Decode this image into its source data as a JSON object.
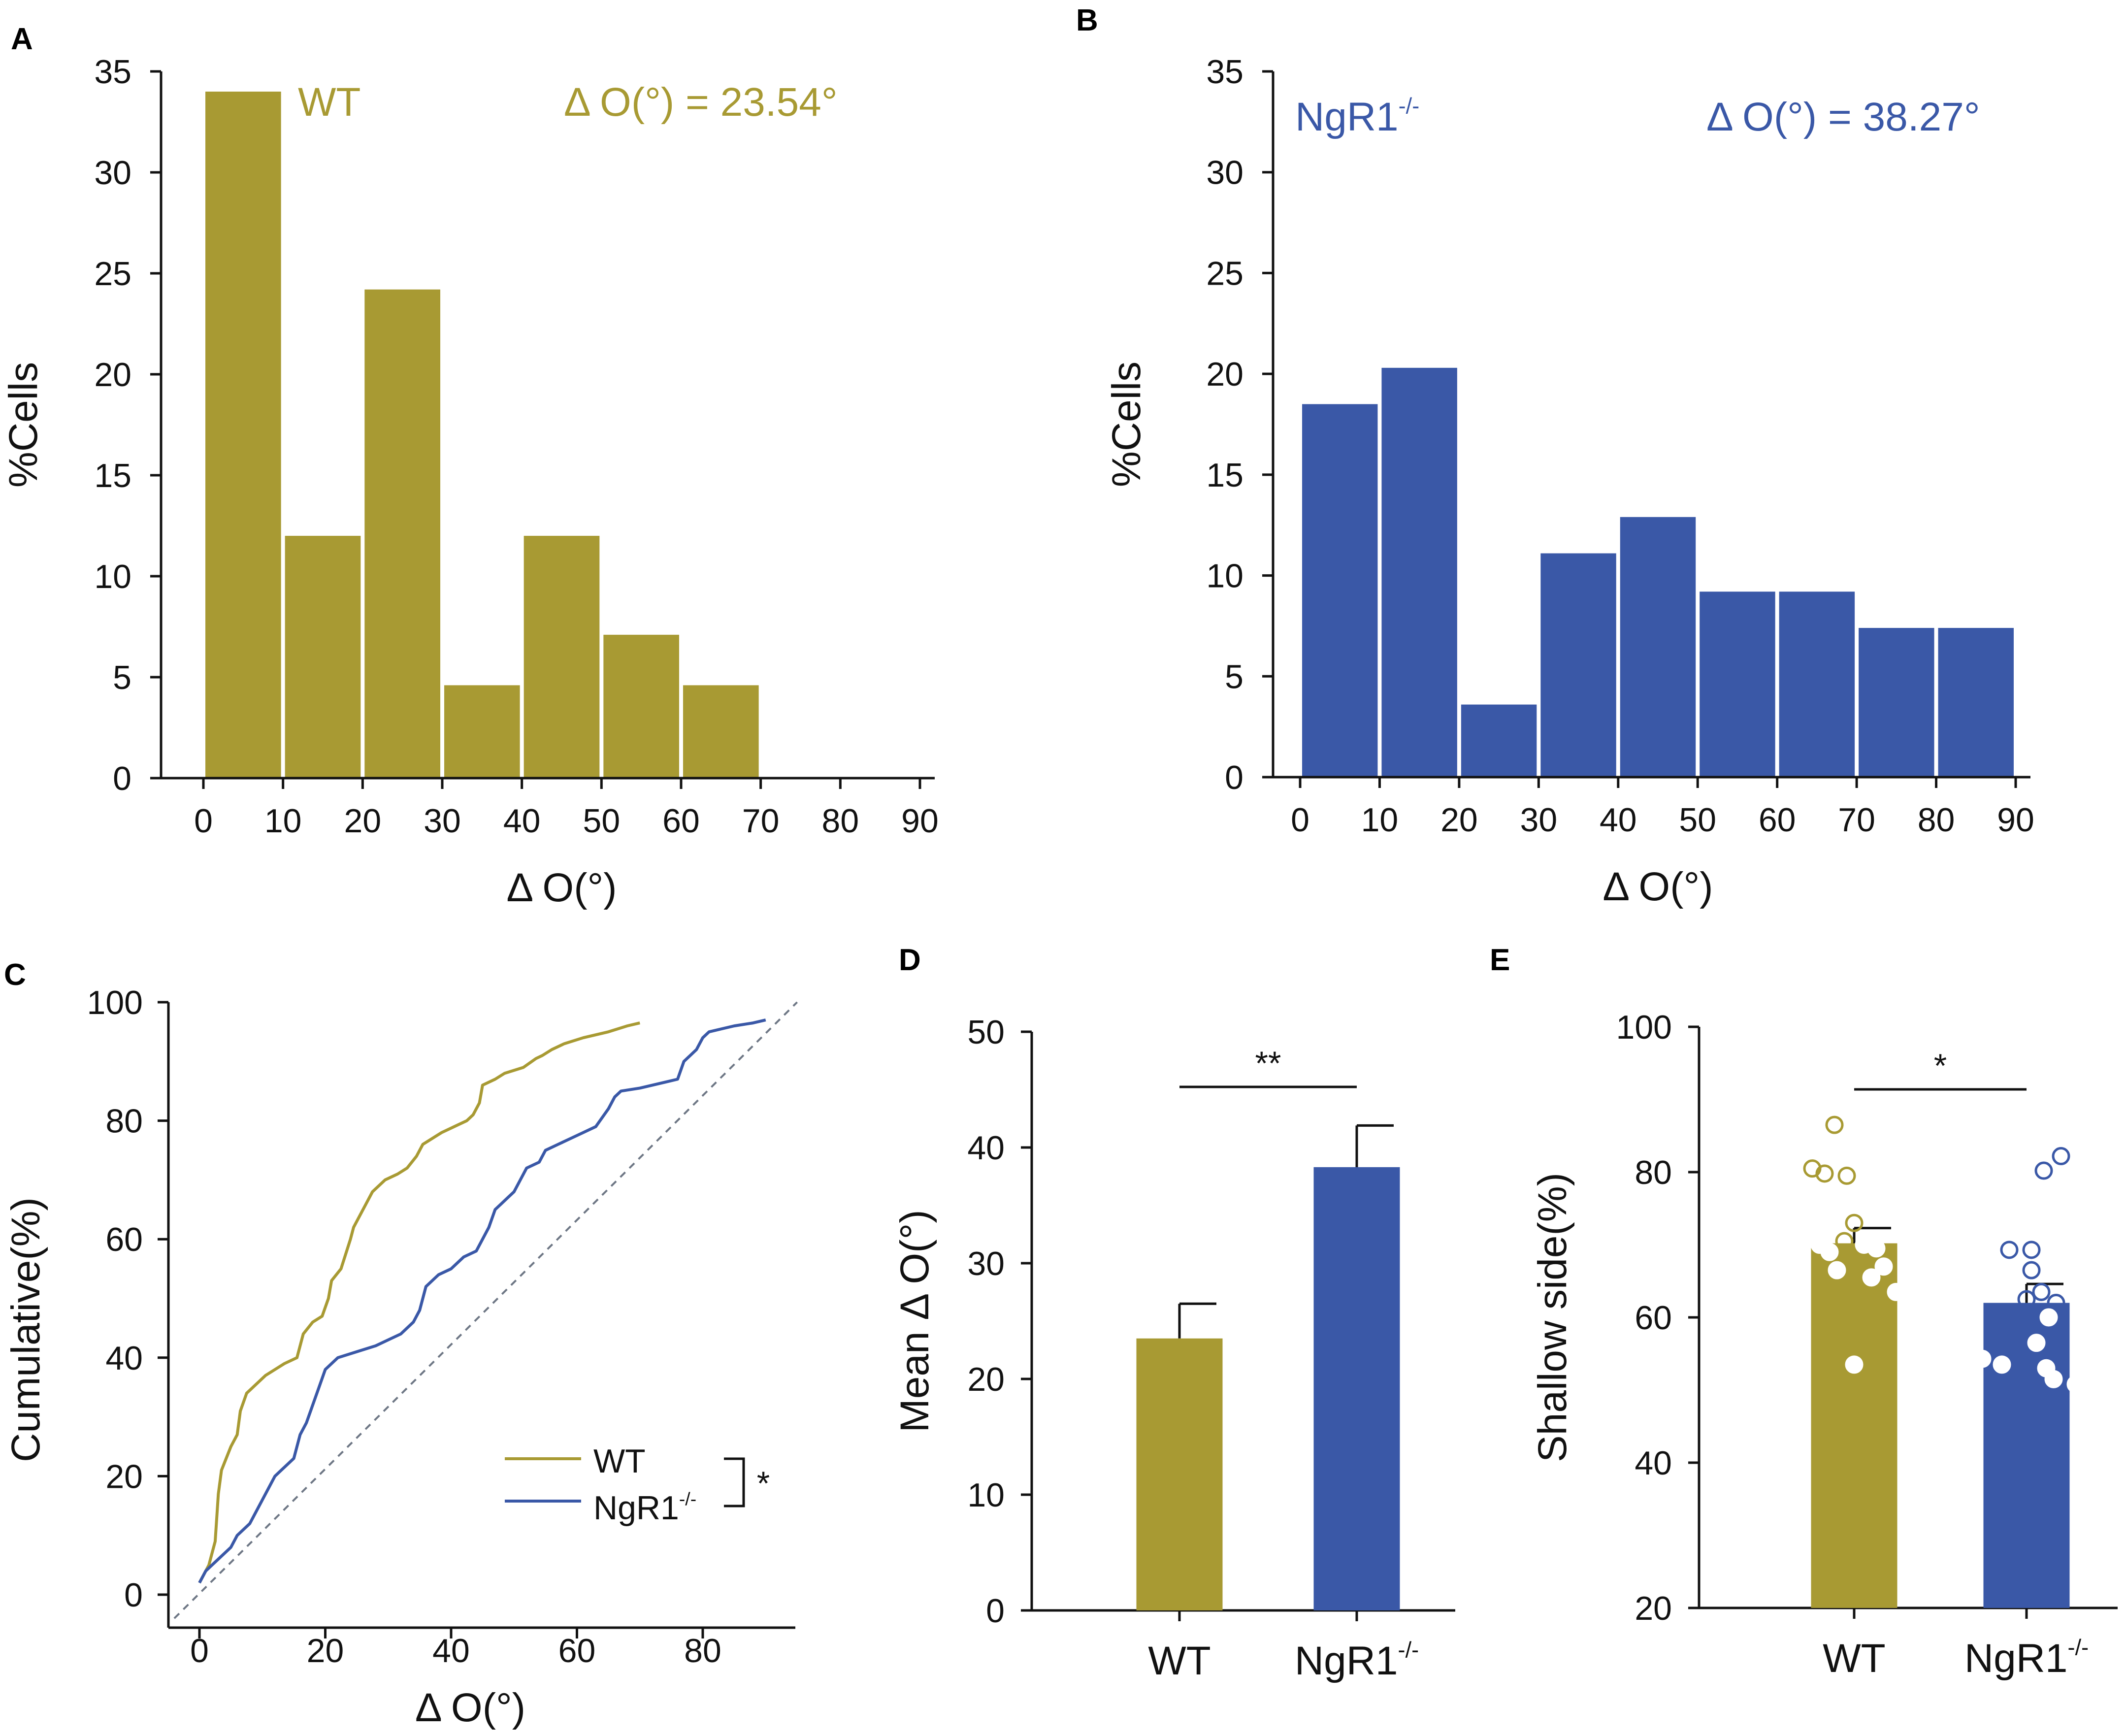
{
  "colors": {
    "wt": "#A89A33",
    "ngr1": "#3A58A7",
    "axis": "#111111",
    "diag": "#6E7785"
  },
  "sup": "-/-",
  "chart_data": [
    {
      "panel": "A",
      "type": "bar",
      "bin_edges": [
        0,
        10,
        20,
        30,
        40,
        50,
        60,
        70
      ],
      "values": [
        34,
        12,
        24.2,
        4.6,
        12,
        7.1,
        4.6
      ],
      "xticks": [
        "0",
        "10",
        "20",
        "30",
        "40",
        "50",
        "60",
        "70",
        "80",
        "90"
      ],
      "yticks": [
        "0",
        "5",
        "10",
        "15",
        "20",
        "25",
        "30",
        "35"
      ],
      "xlim": [
        0,
        90
      ],
      "ylim": [
        0,
        35
      ],
      "xlabel": "Δ O(°)",
      "ylabel": "%Cells",
      "group_label": "WT",
      "group_sup": "",
      "annotation": "Δ O(°) = 23.54°"
    },
    {
      "panel": "B",
      "type": "bar",
      "bin_edges": [
        0,
        10,
        20,
        30,
        40,
        50,
        60,
        70,
        80,
        90
      ],
      "values": [
        18.5,
        20.3,
        3.6,
        11.1,
        12.9,
        9.2,
        9.2,
        7.4,
        7.4
      ],
      "xticks": [
        "0",
        "10",
        "20",
        "30",
        "40",
        "50",
        "60",
        "70",
        "80",
        "90"
      ],
      "yticks": [
        "0",
        "5",
        "10",
        "15",
        "20",
        "25",
        "30",
        "35"
      ],
      "xlim": [
        0,
        90
      ],
      "ylim": [
        0,
        35
      ],
      "xlabel": "Δ O(°)",
      "ylabel": "%Cells",
      "group_label": "NgR1",
      "group_sup": "-/-",
      "annotation": "Δ O(°) = 38.27°"
    },
    {
      "panel": "C",
      "type": "line",
      "xlabel": "Δ O(°)",
      "ylabel": "Cumulative(%)",
      "xticks": [
        "0",
        "20",
        "40",
        "60",
        "80"
      ],
      "yticks": [
        "0",
        "20",
        "40",
        "60",
        "80",
        "100"
      ],
      "xlim": [
        -4,
        95
      ],
      "ylim": [
        0,
        100
      ],
      "series": [
        {
          "name": "WT",
          "sup": "",
          "x": [
            0,
            1.5,
            2.5,
            3,
            3.5,
            5,
            6,
            6.5,
            7.5,
            8.5,
            9.5,
            10.5,
            12,
            13.5,
            15.5,
            16.5,
            18,
            19.5,
            20.5,
            21,
            22.5,
            24,
            24.5,
            25.5,
            26.5,
            27.5,
            29.5,
            31.5,
            33,
            34.5,
            35.5,
            37,
            38.5,
            40.5,
            42.5,
            43.5,
            44.5,
            45,
            47,
            48.5,
            50,
            51.5,
            53.5,
            54.5,
            56,
            58,
            61,
            65,
            68,
            70
          ],
          "y": [
            2,
            5,
            9,
            17,
            21,
            25,
            27,
            31,
            34,
            35,
            36,
            37,
            38,
            39,
            40,
            44,
            46,
            47,
            50,
            53,
            55,
            60,
            62,
            64,
            66,
            68,
            70,
            71,
            72,
            74,
            76,
            77,
            78,
            79,
            80,
            81,
            83,
            86,
            87,
            88,
            88.5,
            89,
            90.5,
            91,
            92,
            93,
            94,
            95,
            96,
            96.5
          ]
        },
        {
          "name": "NgR1",
          "sup": "-/-",
          "x": [
            0,
            1,
            2,
            3,
            4,
            5,
            6,
            7,
            8,
            9,
            10,
            11,
            12,
            13,
            14,
            15,
            16,
            17,
            18,
            19,
            20,
            22,
            25,
            28,
            30,
            32,
            34,
            35,
            36,
            38,
            40,
            42,
            44,
            45,
            46,
            47,
            48,
            49,
            50,
            51,
            52,
            54,
            55,
            57,
            59,
            61,
            63,
            65,
            66,
            67,
            70,
            72,
            74,
            76,
            77,
            78,
            79,
            80,
            81,
            83,
            85,
            88,
            90
          ],
          "y": [
            2,
            4,
            5,
            6,
            7,
            8,
            10,
            11,
            12,
            14,
            16,
            18,
            20,
            21,
            22,
            23,
            27,
            29,
            32,
            35,
            38,
            40,
            41,
            42,
            43,
            44,
            46,
            48,
            52,
            54,
            55,
            57,
            58,
            60,
            62,
            65,
            66,
            67,
            68,
            70,
            72,
            73,
            75,
            76,
            77,
            78,
            79,
            82,
            84,
            85,
            85.5,
            86,
            86.5,
            87,
            90,
            91,
            92,
            94,
            95,
            95.5,
            96,
            96.5,
            97
          ]
        },
        {
          "name": "diagonal",
          "x": [
            -4,
            95
          ],
          "y": [
            -4,
            100
          ]
        }
      ],
      "sig": "*"
    },
    {
      "panel": "D",
      "type": "bar",
      "categories": [
        "WT",
        "NgR1"
      ],
      "category_sups": [
        "",
        "-/-"
      ],
      "values": [
        23.5,
        38.3
      ],
      "errors": [
        3,
        3.6
      ],
      "yticks": [
        "0",
        "10",
        "20",
        "30",
        "40",
        "50"
      ],
      "ylim": [
        0,
        50
      ],
      "ylabel": "Mean Δ O(°)",
      "sig": "**"
    },
    {
      "panel": "E",
      "type": "bar",
      "categories": [
        "WT",
        "NgR1"
      ],
      "category_sups": [
        "",
        "-/-"
      ],
      "values": [
        70.2,
        62.0
      ],
      "errors": [
        2.1,
        2.6
      ],
      "yticks": [
        "20",
        "40",
        "60",
        "80",
        "100"
      ],
      "ylim": [
        20,
        100
      ],
      "ylabel": "Shallow side(%)",
      "sig": "*",
      "points": [
        [
          86.5,
          80.5,
          79.5,
          79.8,
          73,
          70.5,
          70,
          70,
          69.5,
          69,
          67,
          66.5,
          65.5,
          63.5,
          53.5
        ],
        [
          82.2,
          80.2,
          69.3,
          69.3,
          66.5,
          63.5,
          62.5,
          62,
          60,
          56.5,
          54.3,
          53.5,
          53,
          51.5,
          50.8
        ]
      ]
    }
  ]
}
